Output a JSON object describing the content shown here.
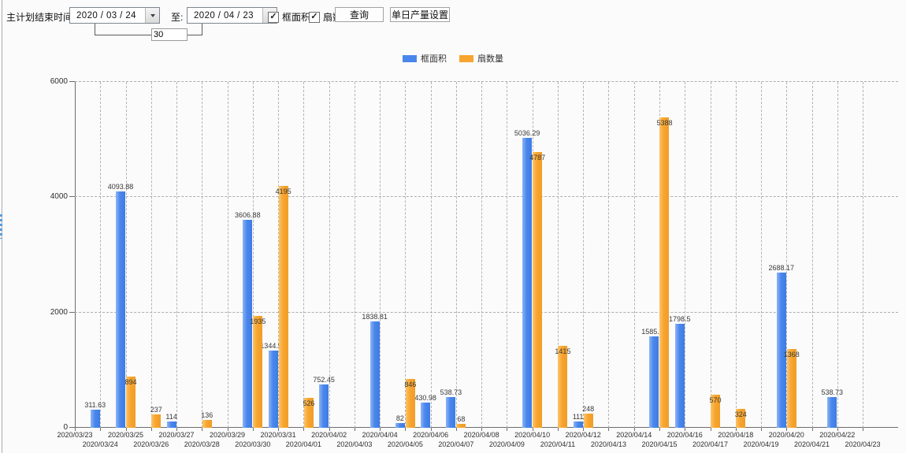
{
  "toolbar": {
    "date_label": "主计划结束时间:",
    "date_from": "2020 / 03 / 24",
    "to_label": "至:",
    "date_to": "2020 / 04 / 23",
    "days_value": "30",
    "checkbox_area": {
      "label": "框面积",
      "checked": true
    },
    "checkbox_fans": {
      "label": "扇数量",
      "checked": true
    },
    "query_button": "查询",
    "daily_output_button": "单日产量设置"
  },
  "legend": [
    {
      "label": "框面积",
      "color": "#4a87ec"
    },
    {
      "label": "扇数量",
      "color": "#f7a52f"
    }
  ],
  "chart_data": {
    "type": "bar",
    "title": "",
    "xlabel": "",
    "ylabel": "",
    "ylim": [
      0,
      6000
    ],
    "yticks": [
      0,
      2000,
      4000,
      6000
    ],
    "grid": true,
    "legend_position": "top",
    "categories": [
      "2020/03/23",
      "2020/03/24",
      "2020/03/25",
      "2020/03/26",
      "2020/03/27",
      "2020/03/28",
      "2020/03/29",
      "2020/03/30",
      "2020/03/31",
      "2020/04/01",
      "2020/04/02",
      "2020/04/03",
      "2020/04/04",
      "2020/04/05",
      "2020/04/06",
      "2020/04/07",
      "2020/04/08",
      "2020/04/09",
      "2020/04/10",
      "2020/04/11",
      "2020/04/12",
      "2020/04/13",
      "2020/04/14",
      "2020/04/15",
      "2020/04/16",
      "2020/04/17",
      "2020/04/18",
      "2020/04/19",
      "2020/04/20",
      "2020/04/21",
      "2020/04/22",
      "2020/04/23"
    ],
    "series": [
      {
        "name": "框面积",
        "color": "#4a87ec",
        "values": [
          null,
          311.63,
          4093.88,
          null,
          114,
          null,
          null,
          3606.88,
          1344.95,
          null,
          752.45,
          null,
          1838.81,
          82,
          430.98,
          538.73,
          null,
          null,
          5036.29,
          null,
          111,
          null,
          null,
          1585.96,
          1798.5,
          null,
          null,
          null,
          2688.17,
          null,
          538.73,
          null
        ]
      },
      {
        "name": "扇数量",
        "color": "#f7a52f",
        "values": [
          null,
          null,
          894,
          237,
          null,
          136,
          null,
          1935,
          4195,
          526,
          null,
          null,
          null,
          846,
          null,
          68,
          null,
          null,
          4787,
          1415,
          248,
          null,
          null,
          5388,
          null,
          570,
          324,
          null,
          1368,
          null,
          null,
          null
        ]
      }
    ]
  }
}
